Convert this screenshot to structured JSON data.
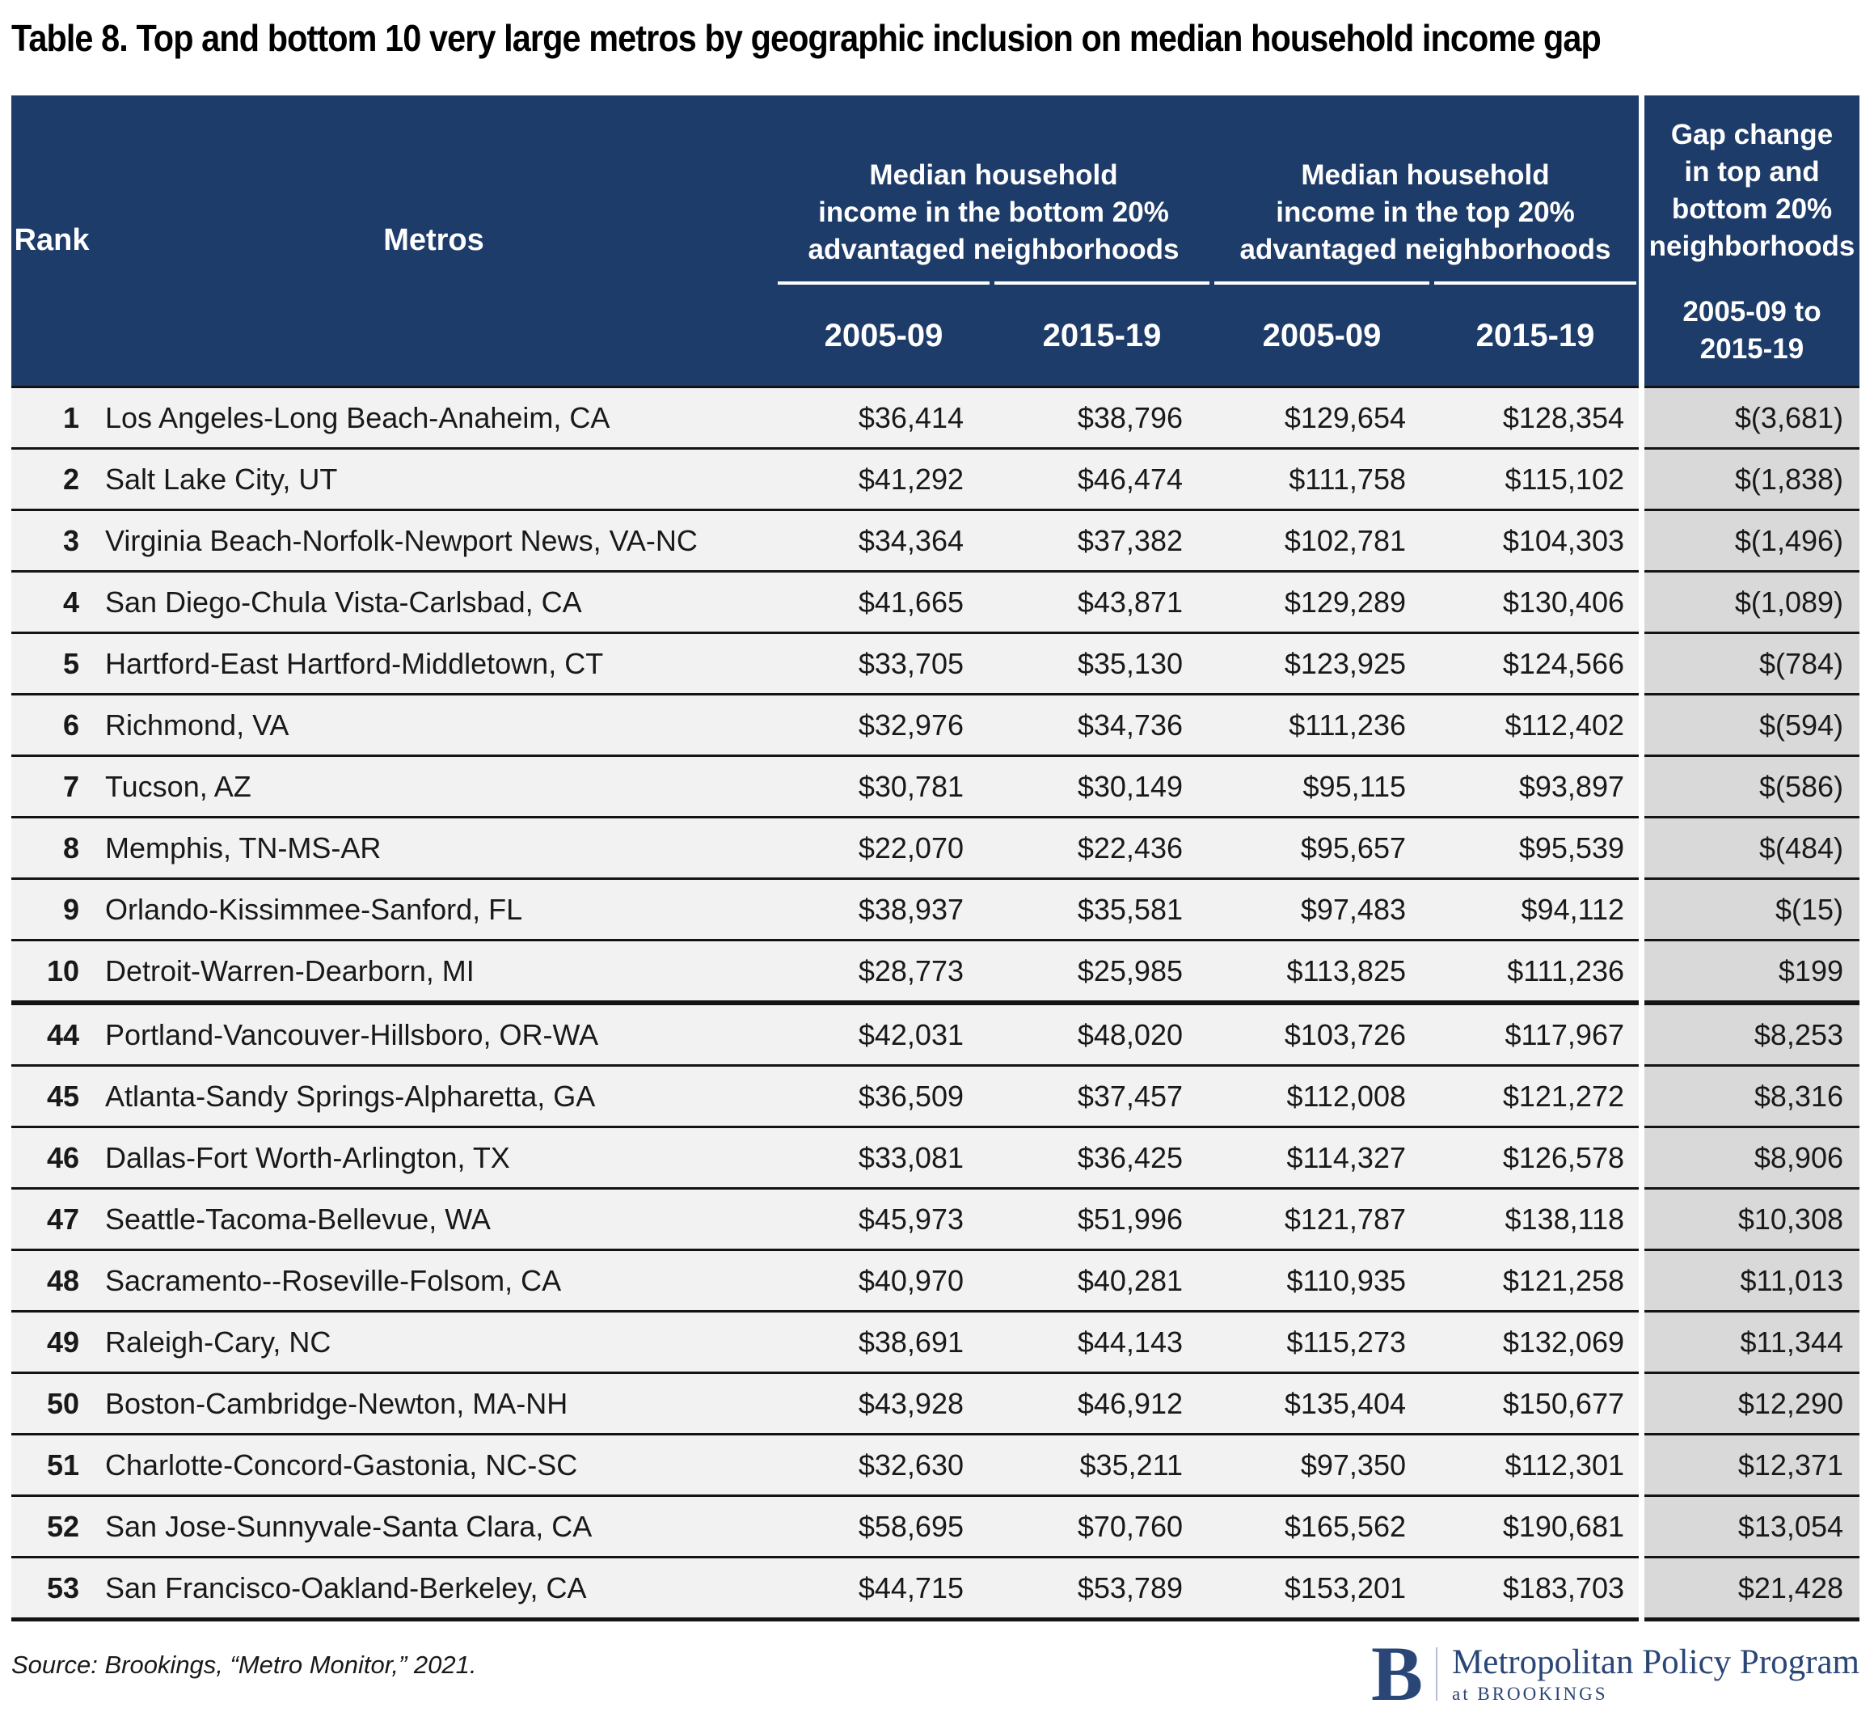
{
  "title": "Table 8. Top and bottom 10 very large metros by geographic inclusion on median household income gap",
  "header": {
    "rank_label": "Rank",
    "metros_label": "Metros",
    "group_bottom_lines": [
      "Median household",
      "income in the bottom 20%",
      "advantaged neighborhoods"
    ],
    "group_top_lines": [
      "Median household",
      "income in the top 20%",
      "advantaged neighborhoods"
    ],
    "period_cols": [
      "2005-09",
      "2015-19",
      "2005-09",
      "2015-19"
    ],
    "gap_lines": [
      "Gap change",
      "in top and",
      "bottom 20%",
      "neighborhoods"
    ],
    "gap_period_lines": [
      "2005-09 to",
      "2015-19"
    ]
  },
  "chart_data": {
    "type": "table",
    "title": "Table 8. Top and bottom 10 very large metros by geographic inclusion on median household income gap",
    "columns": [
      "Rank",
      "Metros",
      "Median household income in the bottom 20% advantaged neighborhoods 2005-09",
      "Median household income in the bottom 20% advantaged neighborhoods 2015-19",
      "Median household income in the top 20% advantaged neighborhoods 2005-09",
      "Median household income in the top 20% advantaged neighborhoods 2015-19",
      "Gap change in top and bottom 20% neighborhoods 2005-09 to 2015-19"
    ],
    "rows": [
      [
        "1",
        "Los Angeles-Long Beach-Anaheim, CA",
        "$36,414",
        "$38,796",
        "$129,654",
        "$128,354",
        "$(3,681)"
      ],
      [
        "2",
        "Salt Lake City, UT",
        "$41,292",
        "$46,474",
        "$111,758",
        "$115,102",
        "$(1,838)"
      ],
      [
        "3",
        "Virginia Beach-Norfolk-Newport News, VA-NC",
        "$34,364",
        "$37,382",
        "$102,781",
        "$104,303",
        "$(1,496)"
      ],
      [
        "4",
        "San Diego-Chula Vista-Carlsbad, CA",
        "$41,665",
        "$43,871",
        "$129,289",
        "$130,406",
        "$(1,089)"
      ],
      [
        "5",
        "Hartford-East Hartford-Middletown, CT",
        "$33,705",
        "$35,130",
        "$123,925",
        "$124,566",
        "$(784)"
      ],
      [
        "6",
        "Richmond, VA",
        "$32,976",
        "$34,736",
        "$111,236",
        "$112,402",
        "$(594)"
      ],
      [
        "7",
        "Tucson, AZ",
        "$30,781",
        "$30,149",
        "$95,115",
        "$93,897",
        "$(586)"
      ],
      [
        "8",
        "Memphis, TN-MS-AR",
        "$22,070",
        "$22,436",
        "$95,657",
        "$95,539",
        "$(484)"
      ],
      [
        "9",
        "Orlando-Kissimmee-Sanford, FL",
        "$38,937",
        "$35,581",
        "$97,483",
        "$94,112",
        "$(15)"
      ],
      [
        "10",
        "Detroit-Warren-Dearborn, MI",
        "$28,773",
        "$25,985",
        "$113,825",
        "$111,236",
        "$199"
      ],
      [
        "44",
        "Portland-Vancouver-Hillsboro, OR-WA",
        "$42,031",
        "$48,020",
        "$103,726",
        "$117,967",
        "$8,253"
      ],
      [
        "45",
        "Atlanta-Sandy Springs-Alpharetta, GA",
        "$36,509",
        "$37,457",
        "$112,008",
        "$121,272",
        "$8,316"
      ],
      [
        "46",
        "Dallas-Fort Worth-Arlington, TX",
        "$33,081",
        "$36,425",
        "$114,327",
        "$126,578",
        "$8,906"
      ],
      [
        "47",
        "Seattle-Tacoma-Bellevue, WA",
        "$45,973",
        "$51,996",
        "$121,787",
        "$138,118",
        "$10,308"
      ],
      [
        "48",
        "Sacramento--Roseville-Folsom, CA",
        "$40,970",
        "$40,281",
        "$110,935",
        "$121,258",
        "$11,013"
      ],
      [
        "49",
        "Raleigh-Cary, NC",
        "$38,691",
        "$44,143",
        "$115,273",
        "$132,069",
        "$11,344"
      ],
      [
        "50",
        "Boston-Cambridge-Newton, MA-NH",
        "$43,928",
        "$46,912",
        "$135,404",
        "$150,677",
        "$12,290"
      ],
      [
        "51",
        "Charlotte-Concord-Gastonia, NC-SC",
        "$32,630",
        "$35,211",
        "$97,350",
        "$112,301",
        "$12,371"
      ],
      [
        "52",
        "San Jose-Sunnyvale-Santa Clara, CA",
        "$58,695",
        "$70,760",
        "$165,562",
        "$190,681",
        "$13,054"
      ],
      [
        "53",
        "San Francisco-Oakland-Berkeley, CA",
        "$44,715",
        "$53,789",
        "$153,201",
        "$183,703",
        "$21,428"
      ]
    ]
  },
  "footer": {
    "source": "Source: Brookings, “Metro Monitor,” 2021.",
    "logo_b": "B",
    "logo_program": "Metropolitan Policy Program",
    "logo_at": "at BROOKINGS"
  },
  "colors": {
    "header_navy": "#1e3c6a",
    "row_bg": "#f2f2f2",
    "gap_column_bg": "#d9d9d9",
    "separator": "#141414",
    "logo_navy": "#2a4677",
    "text": "#191919"
  }
}
